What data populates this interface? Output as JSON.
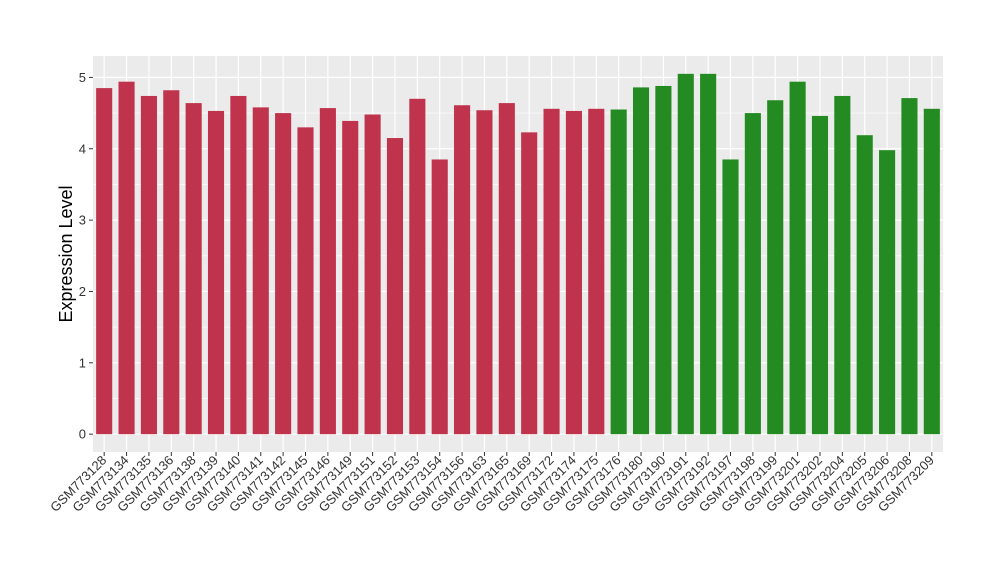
{
  "chart_data": {
    "type": "bar",
    "title": "",
    "xlabel": "",
    "ylabel": "Expression Level",
    "ylim": [
      -0.25,
      5.3
    ],
    "yticks": [
      0,
      1,
      2,
      3,
      4,
      5
    ],
    "grid": true,
    "colors": {
      "group1": "#c0334c",
      "group2": "#238b22",
      "panel": "#ebebeb",
      "gridline": "#ffffff"
    },
    "categories": [
      "GSM773128",
      "GSM773134",
      "GSM773135",
      "GSM773136",
      "GSM773138",
      "GSM773139",
      "GSM773140",
      "GSM773141",
      "GSM773142",
      "GSM773145",
      "GSM773146",
      "GSM773149",
      "GSM773151",
      "GSM773152",
      "GSM773153",
      "GSM773154",
      "GSM773156",
      "GSM773163",
      "GSM773165",
      "GSM773169",
      "GSM773172",
      "GSM773174",
      "GSM773175",
      "GSM773176",
      "GSM773180",
      "GSM773190",
      "GSM773191",
      "GSM773192",
      "GSM773197",
      "GSM773198",
      "GSM773199",
      "GSM773201",
      "GSM773202",
      "GSM773204",
      "GSM773205",
      "GSM773206",
      "GSM773208",
      "GSM773209"
    ],
    "values": [
      4.85,
      4.94,
      4.74,
      4.82,
      4.64,
      4.53,
      4.74,
      4.58,
      4.5,
      4.3,
      4.57,
      4.39,
      4.48,
      4.15,
      4.7,
      3.85,
      4.61,
      4.54,
      4.64,
      4.23,
      4.56,
      4.53,
      4.56,
      4.55,
      4.86,
      4.88,
      5.05,
      5.05,
      3.85,
      4.5,
      4.68,
      4.94,
      4.46,
      4.74,
      4.19,
      3.98,
      4.71,
      4.56
    ],
    "groups": [
      "group1",
      "group1",
      "group1",
      "group1",
      "group1",
      "group1",
      "group1",
      "group1",
      "group1",
      "group1",
      "group1",
      "group1",
      "group1",
      "group1",
      "group1",
      "group1",
      "group1",
      "group1",
      "group1",
      "group1",
      "group1",
      "group1",
      "group1",
      "group2",
      "group2",
      "group2",
      "group2",
      "group2",
      "group2",
      "group2",
      "group2",
      "group2",
      "group2",
      "group2",
      "group2",
      "group2",
      "group2",
      "group2"
    ]
  }
}
